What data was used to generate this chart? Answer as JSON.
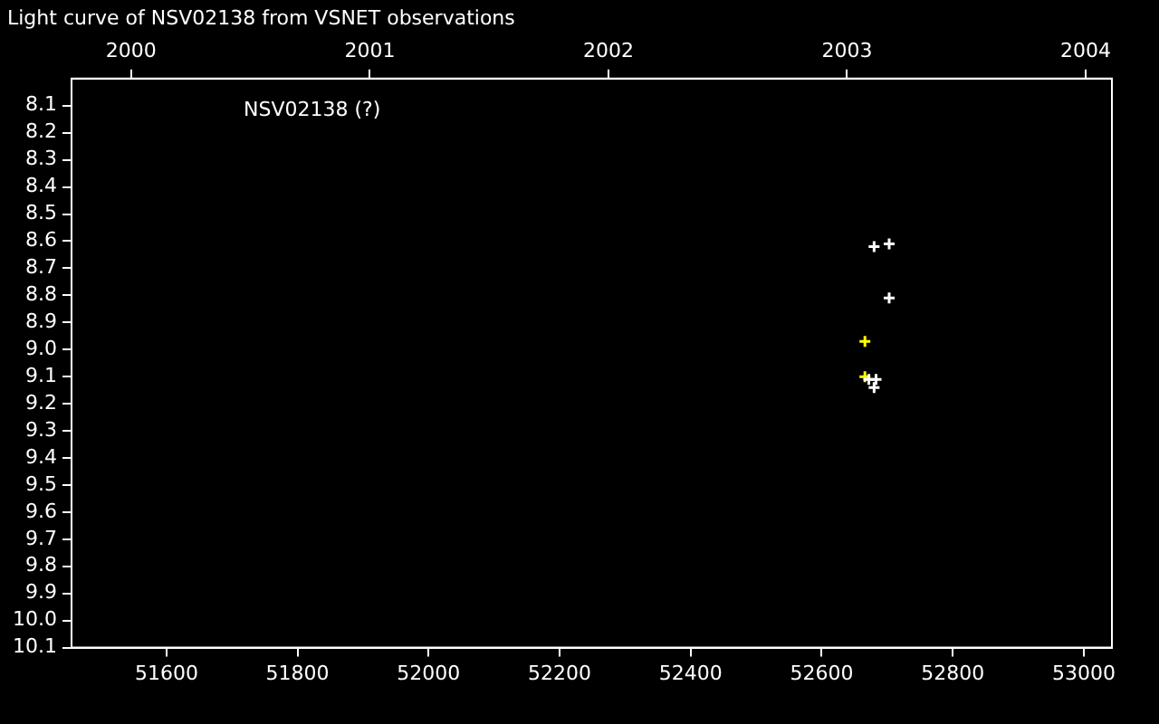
{
  "chart_data": {
    "type": "scatter",
    "title": "Light curve of NSV02138 from VSNET observations",
    "annotations": [
      "NSV02138 (?)"
    ],
    "series": [
      {
        "color": "#ffffff",
        "x": [
          52680,
          52703,
          52703,
          52672,
          52683,
          52680
        ],
        "values": [
          8.62,
          8.61,
          8.81,
          9.11,
          9.11,
          9.14
        ]
      },
      {
        "color": "#ffff00",
        "x": [
          52666,
          52666
        ],
        "values": [
          8.97,
          9.1
        ]
      }
    ],
    "xlim": [
      51455,
      53043
    ],
    "xticks": [
      51600,
      51800,
      52000,
      52200,
      52400,
      52600,
      52800,
      53000
    ],
    "x2lim": [
      1999.75,
      2004.11
    ],
    "x2ticks": [
      2000,
      2001,
      2002,
      2003,
      2004
    ],
    "ylim": [
      10.1,
      8.0
    ],
    "yticks": [
      8.1,
      8.2,
      8.3,
      8.4,
      8.5,
      8.6,
      8.7,
      8.8,
      8.9,
      {
        "value": 9,
        "label": "9.0"
      },
      9.1,
      9.2,
      9.3,
      9.4,
      9.5,
      9.6,
      9.7,
      9.8,
      9.9,
      {
        "value": 10,
        "label": "10.0"
      },
      10.1
    ],
    "grid": false,
    "legend": false,
    "marker": "cross"
  }
}
